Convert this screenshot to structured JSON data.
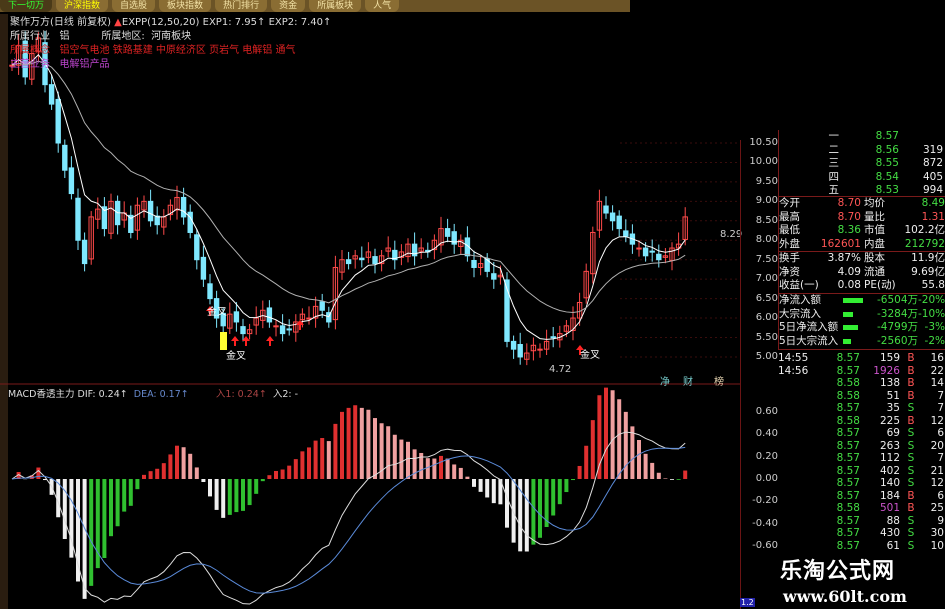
{
  "toolbar": {
    "tabs": [
      "下一切万",
      "沪深指数",
      "自选股",
      "板块指数",
      "热门排行",
      "资金",
      "所属板块",
      "人气"
    ]
  },
  "info": {
    "title": "聚作万方(日线 前复权)",
    "indicator": "EXPP(12,50,20)",
    "exp1": "EXP1: 7.95↑",
    "exp2": "EXP2: 7.40↑",
    "industry_label": "所属行业",
    "industry": "铝",
    "region_label": "所属地区:",
    "region": "河南板块",
    "concept_label": "所属概念",
    "concepts": "铝空气电池 铁路基建 中原经济区 页岩气 电解铝 通气",
    "business_label": "主营业务",
    "business": "电解铝产品"
  },
  "price_chart": {
    "closes": [
      12.5,
      13.0,
      12.2,
      12.8,
      13.2,
      12.0,
      11.5,
      10.5,
      9.8,
      9.2,
      8.0,
      7.4,
      8.6,
      8.8,
      8.3,
      9.0,
      8.4,
      8.7,
      8.2,
      8.9,
      9.0,
      8.5,
      8.4,
      8.6,
      8.9,
      9.1,
      8.6,
      8.2,
      7.5,
      7.0,
      6.5,
      6.0,
      5.8,
      6.1,
      5.9,
      5.6,
      5.7,
      6.0,
      6.2,
      5.9,
      5.8,
      5.6,
      5.7,
      5.9,
      6.1,
      6.0,
      6.3,
      6.2,
      5.9,
      7.3,
      7.5,
      7.4,
      7.6,
      7.5,
      7.7,
      7.4,
      7.6,
      7.8,
      7.5,
      7.7,
      7.9,
      7.6,
      7.8,
      7.7,
      8.0,
      8.3,
      8.1,
      7.9,
      8.0,
      7.6,
      7.3,
      7.4,
      7.2,
      7.0,
      7.1,
      5.4,
      5.2,
      5.0,
      5.1,
      5.3,
      5.2,
      5.4,
      5.5,
      5.6,
      5.8,
      6.0,
      6.4,
      7.2,
      8.2,
      9.0,
      8.7,
      8.5,
      8.3,
      8.1,
      7.9,
      7.8,
      7.6,
      7.7,
      7.5,
      7.6,
      7.8,
      7.9,
      8.6
    ],
    "axis": [
      "10.50",
      "10.00",
      "9.50",
      "9.00",
      "8.50",
      "8.00",
      "7.50",
      "7.00",
      "6.50",
      "6.00",
      "5.50",
      "5.00"
    ],
    "annotations": {
      "cross1": "金叉",
      "cross2": "金叉",
      "cross3": "金叉",
      "low": "4.72",
      "high": "8.29",
      "tags": [
        "净",
        "财",
        "榜"
      ]
    },
    "colors": {
      "up": "#ff4a4a",
      "down": "#7fe8ff",
      "exp1": "#ffffff",
      "exp2": "#b0b0b0"
    }
  },
  "macd": {
    "title": "MACD香透主力",
    "dif": "DIF: 0.24↑",
    "dea": "DEA: 0.17↑",
    "in1": "入1: 0.24↑",
    "in2": "入2: -",
    "axis": [
      "0.60",
      "0.40",
      "0.20",
      "0.00",
      "-0.20",
      "-0.40",
      "-0.60"
    ]
  },
  "orderbook": [
    {
      "level": "一",
      "price": "8.57",
      "vol": ""
    },
    {
      "level": "二",
      "price": "8.56",
      "vol": "319"
    },
    {
      "level": "三",
      "price": "8.55",
      "vol": "872"
    },
    {
      "level": "四",
      "price": "8.54",
      "vol": "405"
    },
    {
      "level": "五",
      "price": "8.53",
      "vol": "994"
    }
  ],
  "stats": [
    {
      "k1": "今开",
      "v1": "8.70",
      "c1": "r",
      "k2": "均价",
      "v2": "8.49",
      "c2": "g"
    },
    {
      "k1": "最高",
      "v1": "8.70",
      "c1": "r",
      "k2": "量比",
      "v2": "1.31",
      "c2": "r"
    },
    {
      "k1": "最低",
      "v1": "8.36",
      "c1": "g",
      "k2": "市值",
      "v2": "102.2亿",
      "c2": "w"
    },
    {
      "k1": "外盘",
      "v1": "162601",
      "c1": "r",
      "k2": "内盘",
      "v2": "212792",
      "c2": "g"
    },
    {
      "k1": "换手",
      "v1": "3.87%",
      "c1": "w",
      "k2": "股本",
      "v2": "11.9亿",
      "c2": "w"
    },
    {
      "k1": "净资",
      "v1": "4.09",
      "c1": "w",
      "k2": "流通",
      "v2": "9.69亿",
      "c2": "w"
    },
    {
      "k1": "收益(一)",
      "v1": "0.08",
      "c1": "w",
      "k2": "PE(动)",
      "v2": "55.8",
      "c2": "w"
    }
  ],
  "flows": [
    {
      "label": "净流入额",
      "value": "-6504万",
      "pct": "-20%",
      "bar": 0.2
    },
    {
      "label": "大宗流入",
      "value": "-3284万",
      "pct": "-10%",
      "bar": 0.1
    },
    {
      "label": "5日净流入额",
      "value": "-4799万",
      "pct": "-3%",
      "bar": 0.15
    },
    {
      "label": "5日大宗流入",
      "value": "-2560万",
      "pct": "-2%",
      "bar": 0.08
    }
  ],
  "ticks": [
    {
      "t": "14:55",
      "p": "8.57",
      "v": "159",
      "bs": "B",
      "n": "16"
    },
    {
      "t": "14:56",
      "p": "8.57",
      "v": "1926",
      "bs": "B",
      "n": "22"
    },
    {
      "t": "",
      "p": "8.58",
      "v": "138",
      "bs": "B",
      "n": "14"
    },
    {
      "t": "",
      "p": "8.58",
      "v": "51",
      "bs": "B",
      "n": "7"
    },
    {
      "t": "",
      "p": "8.57",
      "v": "35",
      "bs": "S",
      "n": "7"
    },
    {
      "t": "",
      "p": "8.58",
      "v": "225",
      "bs": "B",
      "n": "12"
    },
    {
      "t": "",
      "p": "8.57",
      "v": "69",
      "bs": "S",
      "n": "6"
    },
    {
      "t": "",
      "p": "8.57",
      "v": "263",
      "bs": "S",
      "n": "20"
    },
    {
      "t": "",
      "p": "8.57",
      "v": "112",
      "bs": "S",
      "n": "7"
    },
    {
      "t": "",
      "p": "8.57",
      "v": "402",
      "bs": "S",
      "n": "21"
    },
    {
      "t": "",
      "p": "8.57",
      "v": "140",
      "bs": "S",
      "n": "12"
    },
    {
      "t": "",
      "p": "8.57",
      "v": "184",
      "bs": "B",
      "n": "6"
    },
    {
      "t": "",
      "p": "8.58",
      "v": "501",
      "bs": "B",
      "n": "25"
    },
    {
      "t": "",
      "p": "8.57",
      "v": "88",
      "bs": "S",
      "n": "9"
    },
    {
      "t": "",
      "p": "8.57",
      "v": "430",
      "bs": "S",
      "n": "30"
    },
    {
      "t": "",
      "p": "8.57",
      "v": "61",
      "bs": "S",
      "n": "10"
    }
  ],
  "watermark": {
    "name": "乐淘公式网",
    "url": "www.60lt.com"
  },
  "corner_badge": "1.2"
}
